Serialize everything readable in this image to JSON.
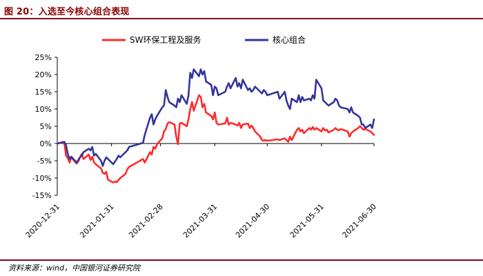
{
  "header": {
    "title": "图 20：入选至今核心组合表现"
  },
  "footer": {
    "source": "资料来源：wind，中国银河证券研究院"
  },
  "chart_data": {
    "type": "line",
    "title": "",
    "xlabel": "",
    "ylabel": "",
    "ylim": [
      -15,
      25
    ],
    "y_ticks": [
      -15,
      -10,
      -5,
      0,
      5,
      10,
      15,
      20,
      25
    ],
    "y_tick_format": "percent",
    "x_start": "2020-12-31",
    "x_end": "2021-06-30",
    "x_ticks": [
      "2020-12-31",
      "2021-01-31",
      "2021-02-28",
      "2021-03-31",
      "2021-04-30",
      "2021-05-31",
      "2021-06-30"
    ],
    "legend_position": "top-center",
    "grid": false,
    "series": [
      {
        "name": "SW环保工程及服务",
        "color": "#ff2a2a",
        "points": [
          [
            "2020-12-31",
            0.0
          ],
          [
            "2021-01-04",
            0.3
          ],
          [
            "2021-01-05",
            -3.5
          ],
          [
            "2021-01-06",
            -4.2
          ],
          [
            "2021-01-07",
            -5.5
          ],
          [
            "2021-01-08",
            -4.0
          ],
          [
            "2021-01-11",
            -5.8
          ],
          [
            "2021-01-12",
            -5.2
          ],
          [
            "2021-01-13",
            -4.0
          ],
          [
            "2021-01-14",
            -3.0
          ],
          [
            "2021-01-15",
            -4.5
          ],
          [
            "2021-01-18",
            -3.2
          ],
          [
            "2021-01-19",
            -4.8
          ],
          [
            "2021-01-20",
            -3.8
          ],
          [
            "2021-01-21",
            -5.5
          ],
          [
            "2021-01-22",
            -6.0
          ],
          [
            "2021-01-25",
            -7.2
          ],
          [
            "2021-01-26",
            -8.5
          ],
          [
            "2021-01-27",
            -8.8
          ],
          [
            "2021-01-28",
            -8.2
          ],
          [
            "2021-01-29",
            -10.5
          ],
          [
            "2021-02-01",
            -11.3
          ],
          [
            "2021-02-02",
            -11.0
          ],
          [
            "2021-02-03",
            -11.2
          ],
          [
            "2021-02-04",
            -10.6
          ],
          [
            "2021-02-05",
            -10.0
          ],
          [
            "2021-02-08",
            -8.8
          ],
          [
            "2021-02-09",
            -7.5
          ],
          [
            "2021-02-10",
            -6.8
          ],
          [
            "2021-02-18",
            -4.5
          ],
          [
            "2021-02-19",
            -5.5
          ],
          [
            "2021-02-22",
            -2.5
          ],
          [
            "2021-02-23",
            -3.2
          ],
          [
            "2021-02-24",
            -1.0
          ],
          [
            "2021-02-25",
            -1.5
          ],
          [
            "2021-02-26",
            -0.2
          ],
          [
            "2021-03-01",
            1.5
          ],
          [
            "2021-03-02",
            3.5
          ],
          [
            "2021-03-03",
            4.2
          ],
          [
            "2021-03-04",
            5.8
          ],
          [
            "2021-03-05",
            6.2
          ],
          [
            "2021-03-08",
            5.5
          ],
          [
            "2021-03-09",
            2.0
          ],
          [
            "2021-03-10",
            -0.2
          ],
          [
            "2021-03-11",
            5.8
          ],
          [
            "2021-03-12",
            6.0
          ],
          [
            "2021-03-15",
            5.0
          ],
          [
            "2021-03-16",
            7.0
          ],
          [
            "2021-03-17",
            10.0
          ],
          [
            "2021-03-18",
            12.0
          ],
          [
            "2021-03-19",
            9.5
          ],
          [
            "2021-03-22",
            14.0
          ],
          [
            "2021-03-23",
            13.5
          ],
          [
            "2021-03-24",
            10.5
          ],
          [
            "2021-03-25",
            11.5
          ],
          [
            "2021-03-26",
            9.0
          ],
          [
            "2021-03-29",
            8.0
          ],
          [
            "2021-03-30",
            7.0
          ],
          [
            "2021-03-31",
            9.0
          ],
          [
            "2021-04-01",
            6.0
          ],
          [
            "2021-04-02",
            5.5
          ],
          [
            "2021-04-06",
            5.8
          ],
          [
            "2021-04-07",
            7.5
          ],
          [
            "2021-04-08",
            5.5
          ],
          [
            "2021-04-09",
            6.0
          ],
          [
            "2021-04-12",
            5.5
          ],
          [
            "2021-04-13",
            5.2
          ],
          [
            "2021-04-14",
            6.0
          ],
          [
            "2021-04-15",
            4.5
          ],
          [
            "2021-04-16",
            5.5
          ],
          [
            "2021-04-19",
            5.8
          ],
          [
            "2021-04-20",
            4.5
          ],
          [
            "2021-04-21",
            5.2
          ],
          [
            "2021-04-22",
            4.5
          ],
          [
            "2021-04-23",
            3.5
          ],
          [
            "2021-04-26",
            2.0
          ],
          [
            "2021-04-27",
            1.0
          ],
          [
            "2021-04-28",
            0.8
          ],
          [
            "2021-04-29",
            1.0
          ],
          [
            "2021-04-30",
            0.8
          ],
          [
            "2021-05-06",
            1.2
          ],
          [
            "2021-05-07",
            1.0
          ],
          [
            "2021-05-10",
            1.5
          ],
          [
            "2021-05-11",
            1.0
          ],
          [
            "2021-05-12",
            0.5
          ],
          [
            "2021-05-13",
            2.0
          ],
          [
            "2021-05-14",
            1.0
          ],
          [
            "2021-05-17",
            4.0
          ],
          [
            "2021-05-18",
            4.5
          ],
          [
            "2021-05-19",
            3.5
          ],
          [
            "2021-05-20",
            4.0
          ],
          [
            "2021-05-21",
            3.0
          ],
          [
            "2021-05-24",
            4.5
          ],
          [
            "2021-05-25",
            4.0
          ],
          [
            "2021-05-26",
            4.8
          ],
          [
            "2021-05-27",
            4.0
          ],
          [
            "2021-05-28",
            4.5
          ],
          [
            "2021-05-31",
            3.5
          ],
          [
            "2021-06-01",
            4.5
          ],
          [
            "2021-06-02",
            3.8
          ],
          [
            "2021-06-03",
            4.0
          ],
          [
            "2021-06-04",
            3.2
          ],
          [
            "2021-06-07",
            4.0
          ],
          [
            "2021-06-08",
            4.5
          ],
          [
            "2021-06-09",
            4.0
          ],
          [
            "2021-06-10",
            3.8
          ],
          [
            "2021-06-11",
            4.2
          ],
          [
            "2021-06-15",
            3.5
          ],
          [
            "2021-06-16",
            2.0
          ],
          [
            "2021-06-17",
            3.0
          ],
          [
            "2021-06-18",
            3.5
          ],
          [
            "2021-06-21",
            4.5
          ],
          [
            "2021-06-22",
            5.0
          ],
          [
            "2021-06-23",
            4.5
          ],
          [
            "2021-06-24",
            4.0
          ],
          [
            "2021-06-25",
            4.2
          ],
          [
            "2021-06-28",
            3.5
          ],
          [
            "2021-06-29",
            3.0
          ],
          [
            "2021-06-30",
            2.5
          ]
        ]
      },
      {
        "name": "核心组合",
        "color": "#33339a",
        "points": [
          [
            "2020-12-31",
            0.0
          ],
          [
            "2021-01-04",
            0.5
          ],
          [
            "2021-01-05",
            -0.5
          ],
          [
            "2021-01-06",
            -3.0
          ],
          [
            "2021-01-07",
            -4.5
          ],
          [
            "2021-01-08",
            -3.8
          ],
          [
            "2021-01-11",
            -5.5
          ],
          [
            "2021-01-12",
            -4.8
          ],
          [
            "2021-01-13",
            -4.0
          ],
          [
            "2021-01-14",
            -3.5
          ],
          [
            "2021-01-15",
            -2.5
          ],
          [
            "2021-01-18",
            -1.5
          ],
          [
            "2021-01-19",
            -2.0
          ],
          [
            "2021-01-20",
            -1.0
          ],
          [
            "2021-01-21",
            -3.5
          ],
          [
            "2021-01-22",
            -3.0
          ],
          [
            "2021-01-25",
            -5.0
          ],
          [
            "2021-01-26",
            -6.5
          ],
          [
            "2021-01-27",
            -5.0
          ],
          [
            "2021-01-28",
            -4.0
          ],
          [
            "2021-01-29",
            -4.5
          ],
          [
            "2021-02-01",
            -6.0
          ],
          [
            "2021-02-02",
            -5.2
          ],
          [
            "2021-02-03",
            -4.5
          ],
          [
            "2021-02-04",
            -3.5
          ],
          [
            "2021-02-05",
            -4.0
          ],
          [
            "2021-02-08",
            -2.5
          ],
          [
            "2021-02-09",
            -2.0
          ],
          [
            "2021-02-10",
            -1.0
          ],
          [
            "2021-02-18",
            0.2
          ],
          [
            "2021-02-19",
            2.5
          ],
          [
            "2021-02-22",
            7.5
          ],
          [
            "2021-02-23",
            8.5
          ],
          [
            "2021-02-24",
            5.5
          ],
          [
            "2021-02-25",
            7.0
          ],
          [
            "2021-02-26",
            8.0
          ],
          [
            "2021-03-01",
            10.5
          ],
          [
            "2021-03-02",
            11.0
          ],
          [
            "2021-03-03",
            15.5
          ],
          [
            "2021-03-04",
            13.5
          ],
          [
            "2021-03-05",
            12.0
          ],
          [
            "2021-03-08",
            11.0
          ],
          [
            "2021-03-09",
            10.5
          ],
          [
            "2021-03-10",
            13.0
          ],
          [
            "2021-03-11",
            12.0
          ],
          [
            "2021-03-12",
            14.0
          ],
          [
            "2021-03-15",
            11.5
          ],
          [
            "2021-03-16",
            14.0
          ],
          [
            "2021-03-17",
            20.5
          ],
          [
            "2021-03-18",
            19.0
          ],
          [
            "2021-03-19",
            21.5
          ],
          [
            "2021-03-22",
            19.5
          ],
          [
            "2021-03-23",
            21.5
          ],
          [
            "2021-03-24",
            20.0
          ],
          [
            "2021-03-25",
            21.0
          ],
          [
            "2021-03-26",
            18.0
          ],
          [
            "2021-03-29",
            17.0
          ],
          [
            "2021-03-30",
            14.0
          ],
          [
            "2021-03-31",
            16.5
          ],
          [
            "2021-04-01",
            16.0
          ],
          [
            "2021-04-02",
            14.0
          ],
          [
            "2021-04-06",
            15.0
          ],
          [
            "2021-04-07",
            16.5
          ],
          [
            "2021-04-08",
            17.5
          ],
          [
            "2021-04-09",
            16.0
          ],
          [
            "2021-04-12",
            19.0
          ],
          [
            "2021-04-13",
            16.5
          ],
          [
            "2021-04-14",
            17.5
          ],
          [
            "2021-04-15",
            16.0
          ],
          [
            "2021-04-16",
            18.5
          ],
          [
            "2021-04-19",
            15.5
          ],
          [
            "2021-04-20",
            16.0
          ],
          [
            "2021-04-21",
            15.0
          ],
          [
            "2021-04-22",
            15.5
          ],
          [
            "2021-04-23",
            16.5
          ],
          [
            "2021-04-26",
            15.0
          ],
          [
            "2021-04-27",
            14.5
          ],
          [
            "2021-04-28",
            15.5
          ],
          [
            "2021-04-29",
            15.0
          ],
          [
            "2021-04-30",
            14.0
          ],
          [
            "2021-05-06",
            15.0
          ],
          [
            "2021-05-07",
            13.0
          ],
          [
            "2021-05-10",
            15.0
          ],
          [
            "2021-05-11",
            12.5
          ],
          [
            "2021-05-12",
            11.0
          ],
          [
            "2021-05-13",
            10.0
          ],
          [
            "2021-05-14",
            13.0
          ],
          [
            "2021-05-17",
            12.0
          ],
          [
            "2021-05-18",
            14.0
          ],
          [
            "2021-05-19",
            12.0
          ],
          [
            "2021-05-20",
            13.5
          ],
          [
            "2021-05-21",
            12.5
          ],
          [
            "2021-05-24",
            13.0
          ],
          [
            "2021-05-25",
            12.5
          ],
          [
            "2021-05-26",
            14.0
          ],
          [
            "2021-05-27",
            13.0
          ],
          [
            "2021-05-28",
            18.5
          ],
          [
            "2021-05-31",
            16.0
          ],
          [
            "2021-06-01",
            12.5
          ],
          [
            "2021-06-02",
            12.0
          ],
          [
            "2021-06-03",
            11.5
          ],
          [
            "2021-06-04",
            11.0
          ],
          [
            "2021-06-07",
            12.0
          ],
          [
            "2021-06-08",
            13.0
          ],
          [
            "2021-06-09",
            12.5
          ],
          [
            "2021-06-10",
            11.0
          ],
          [
            "2021-06-11",
            10.5
          ],
          [
            "2021-06-15",
            10.0
          ],
          [
            "2021-06-16",
            9.0
          ],
          [
            "2021-06-17",
            10.5
          ],
          [
            "2021-06-18",
            9.0
          ],
          [
            "2021-06-21",
            8.0
          ],
          [
            "2021-06-22",
            7.5
          ],
          [
            "2021-06-23",
            5.5
          ],
          [
            "2021-06-24",
            5.5
          ],
          [
            "2021-06-25",
            4.5
          ],
          [
            "2021-06-28",
            5.5
          ],
          [
            "2021-06-29",
            4.5
          ],
          [
            "2021-06-30",
            7.0
          ]
        ]
      }
    ]
  }
}
